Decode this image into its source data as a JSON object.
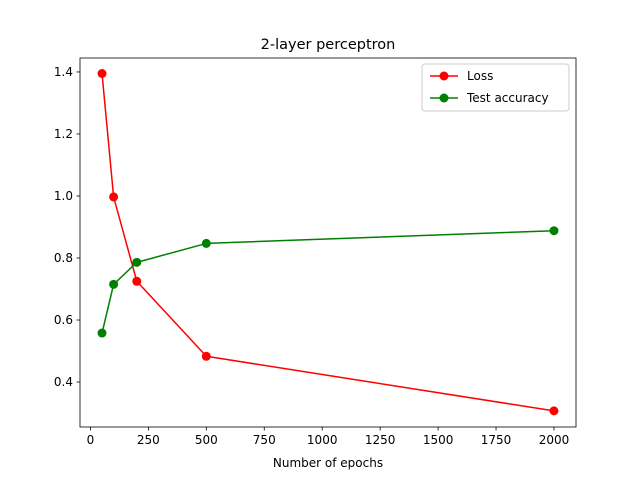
{
  "chart_data": {
    "type": "line",
    "title": "2-layer perceptron",
    "xlabel": "Number of epochs",
    "ylabel": "",
    "xlim": [
      -45,
      2095
    ],
    "ylim": [
      0.255,
      1.445
    ],
    "xticks": [
      0,
      250,
      500,
      750,
      1000,
      1250,
      1500,
      1750,
      2000
    ],
    "xtick_labels": [
      "0",
      "250",
      "500",
      "750",
      "1000",
      "1250",
      "1500",
      "1750",
      "2000"
    ],
    "yticks": [
      0.4,
      0.6,
      0.8,
      1.0,
      1.2,
      1.4
    ],
    "ytick_labels": [
      "0.4",
      "0.6",
      "0.8",
      "1.0",
      "1.2",
      "1.4"
    ],
    "grid": false,
    "legend_position": "top-right",
    "x": [
      50,
      100,
      200,
      500,
      2000
    ],
    "series": [
      {
        "name": "Loss",
        "color": "#ff0000",
        "marker": "circle",
        "values": [
          1.395,
          0.997,
          0.725,
          0.483,
          0.307
        ]
      },
      {
        "name": "Test accuracy",
        "color": "#008000",
        "marker": "circle",
        "values": [
          0.558,
          0.715,
          0.786,
          0.847,
          0.888
        ]
      }
    ]
  }
}
